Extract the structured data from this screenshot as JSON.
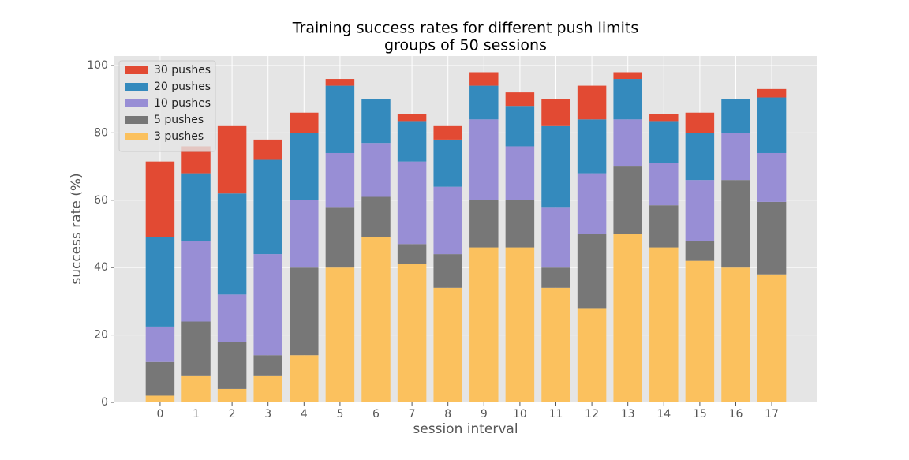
{
  "chart_data": {
    "type": "stacked_bar",
    "title": "Training success rates for different push limits",
    "subtitle": "groups of 50 sessions",
    "x_label": "session interval",
    "y_label": "success rate (%)",
    "x": [
      0,
      1,
      2,
      3,
      4,
      5,
      6,
      7,
      8,
      9,
      10,
      11,
      12,
      13,
      14,
      15,
      16,
      17
    ],
    "xlim": [
      -1.27,
      18.27
    ],
    "xticks": [
      0,
      1,
      2,
      3,
      4,
      5,
      6,
      7,
      8,
      9,
      10,
      11,
      12,
      13,
      14,
      15,
      16,
      17
    ],
    "ylim": [
      0,
      102.8
    ],
    "yticks": [
      0,
      20,
      40,
      60,
      80,
      100
    ],
    "grid": true,
    "legend_position": "upper-left",
    "series": [
      {
        "name": "3 pushes",
        "color": "#fbc15e",
        "values": [
          2,
          8,
          4,
          8,
          14,
          40,
          49,
          41,
          34,
          46,
          46,
          34,
          28,
          50,
          46,
          42,
          40,
          38
        ]
      },
      {
        "name": "5 pushes",
        "color": "#777777",
        "values": [
          10,
          16,
          14,
          6,
          26,
          18,
          12,
          6,
          10,
          14,
          14,
          6,
          22,
          20,
          12.5,
          6,
          26,
          21.5
        ]
      },
      {
        "name": "10 pushes",
        "color": "#988ed5",
        "values": [
          10.5,
          24,
          14,
          30,
          20,
          16,
          16,
          24.5,
          20,
          24,
          16,
          18,
          18,
          14,
          12.5,
          18,
          14,
          14.5
        ]
      },
      {
        "name": "20 pushes",
        "color": "#348abd",
        "values": [
          26.5,
          20,
          30,
          28,
          20,
          20,
          13,
          12,
          14,
          10,
          12,
          24,
          16,
          12,
          12.5,
          14,
          10,
          16.5
        ]
      },
      {
        "name": "30 pushes",
        "color": "#e24a33",
        "values": [
          22.5,
          8,
          20,
          6,
          6,
          2,
          0,
          2,
          4,
          4,
          4,
          8,
          10,
          2,
          2,
          6,
          0,
          2.5
        ]
      }
    ]
  }
}
